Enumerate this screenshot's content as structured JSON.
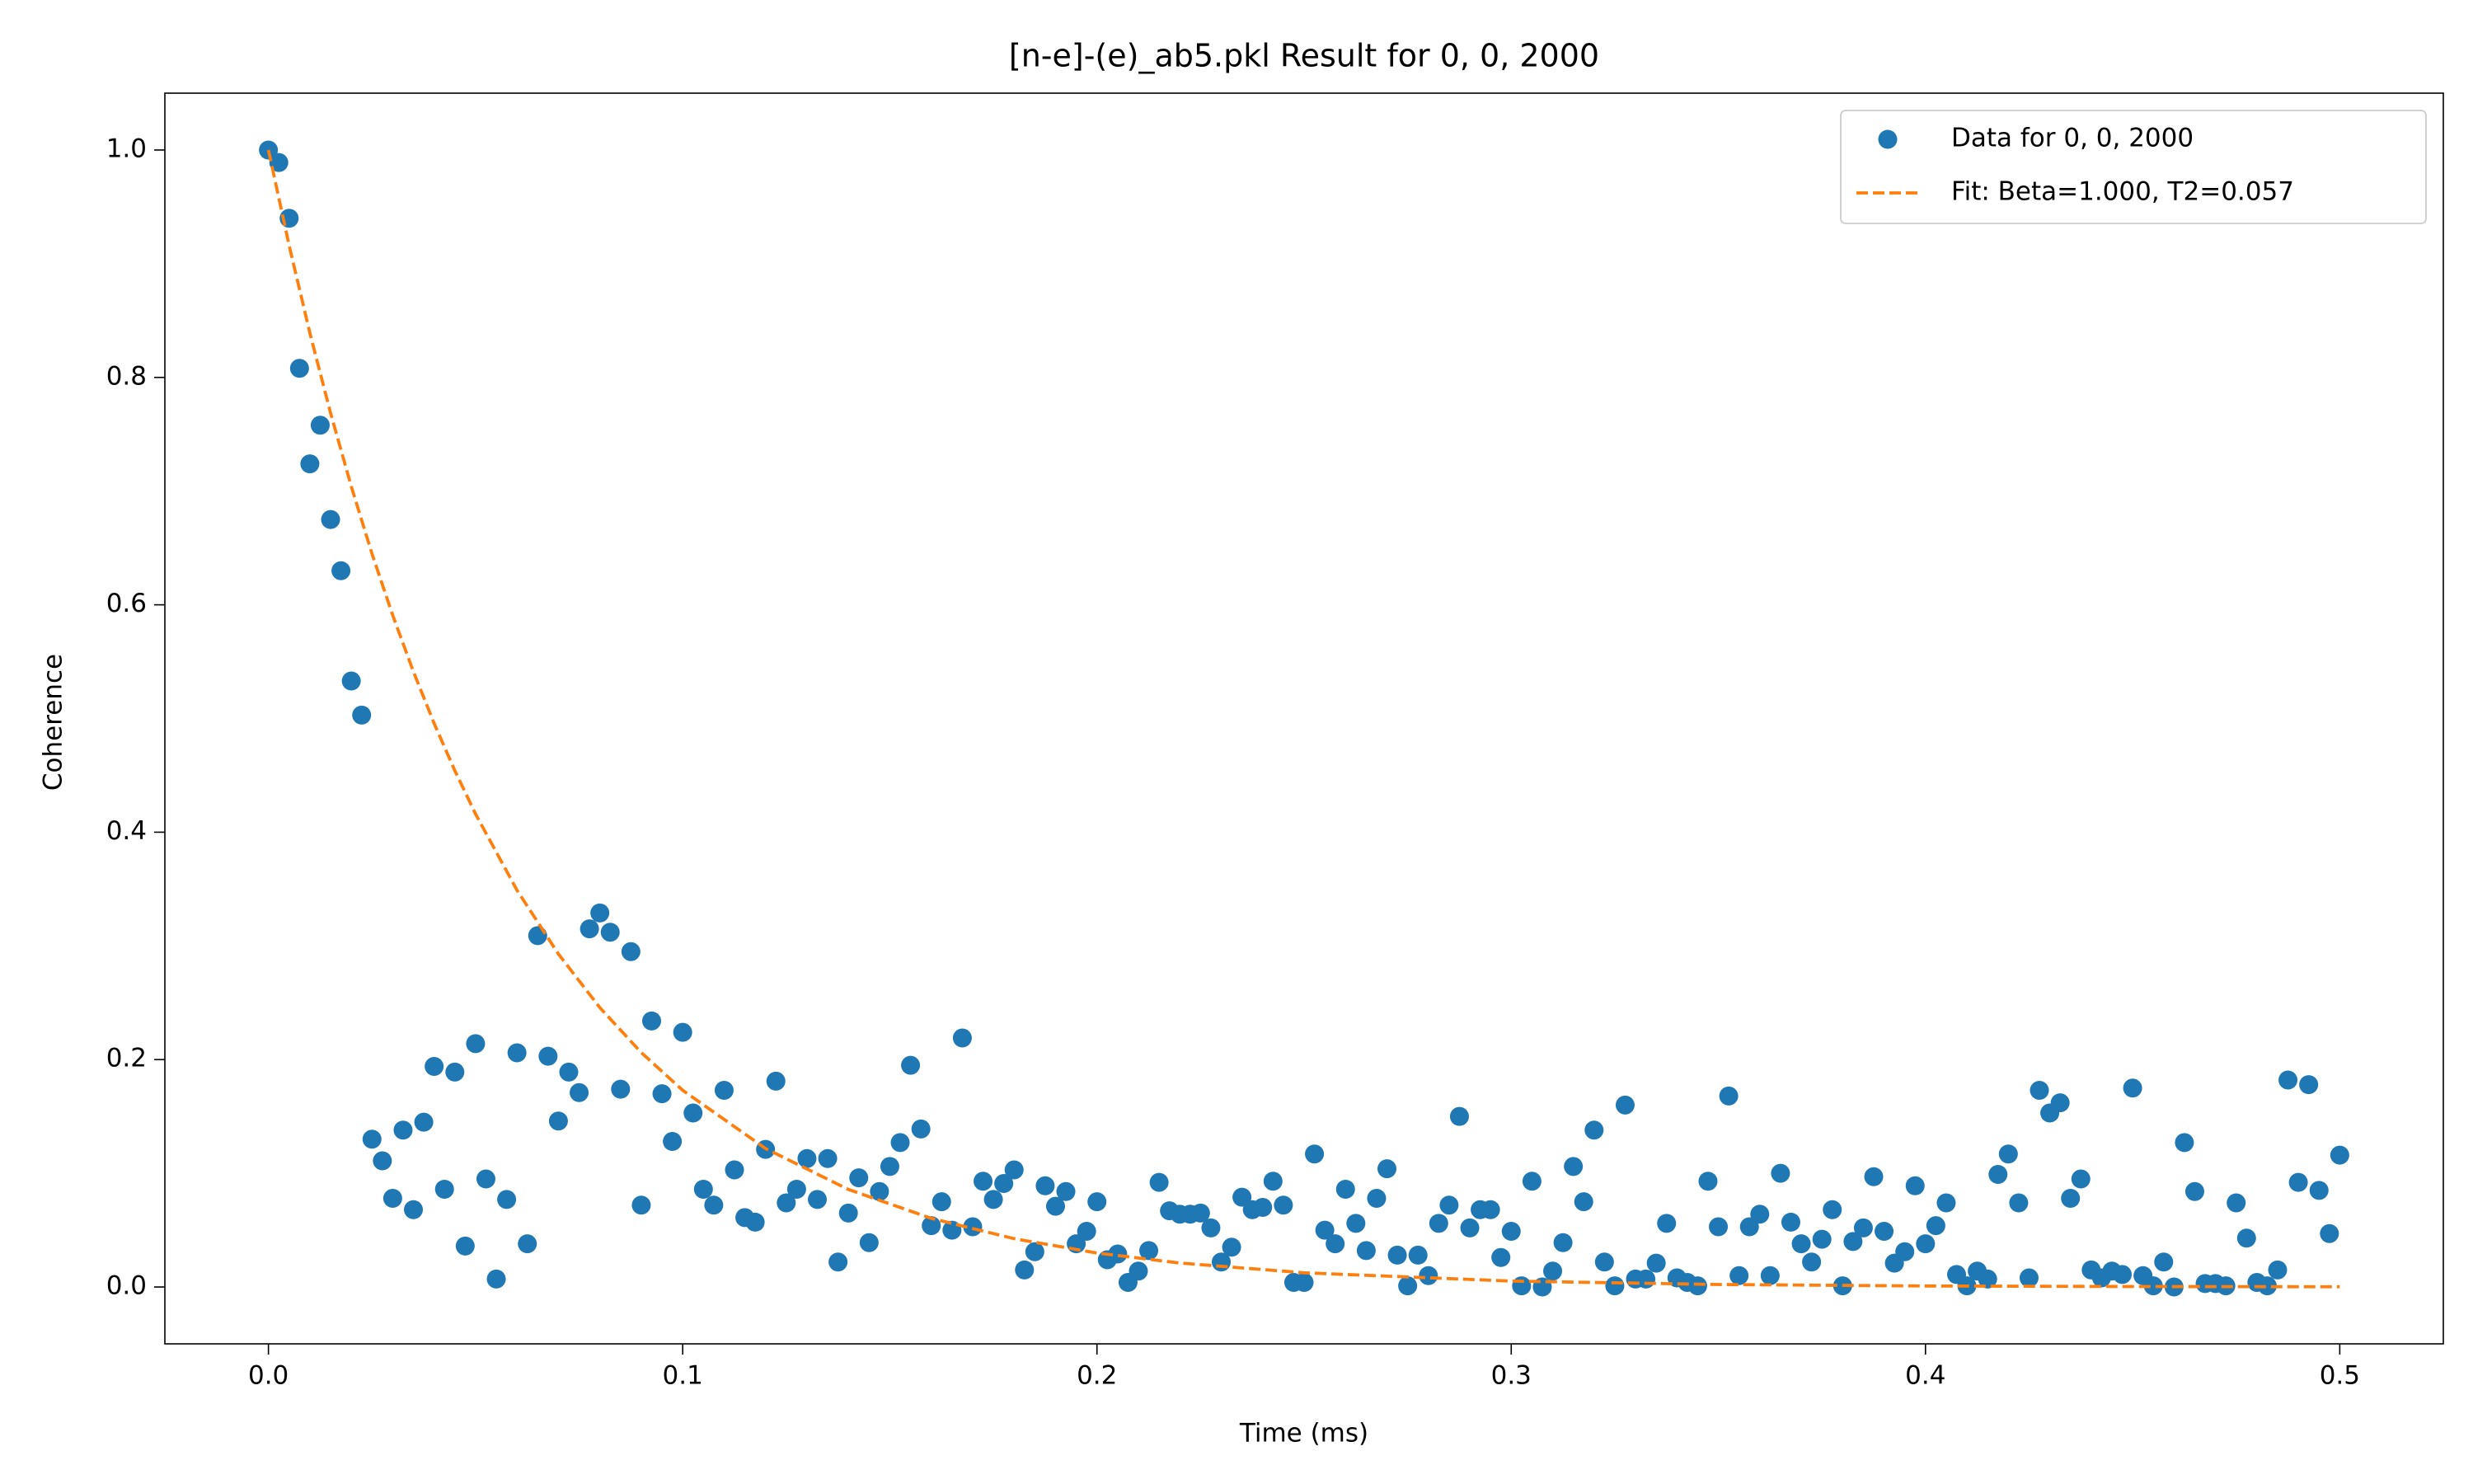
{
  "chart_data": {
    "type": "scatter",
    "title": "[n-e]-(e)_ab5.pkl Result for 0, 0, 2000",
    "xlabel": "Time (ms)",
    "ylabel": "Coherence",
    "xlim": [
      -0.025,
      0.525
    ],
    "ylim": [
      -0.05,
      1.05
    ],
    "xticks": [
      {
        "value": 0,
        "label": "0.0"
      },
      0.1,
      0.2,
      0.3,
      0.4,
      0.5
    ],
    "yticks": [
      {
        "value": 0,
        "label": "0.0"
      },
      0.2,
      0.4,
      0.6,
      0.8,
      {
        "value": 1,
        "label": "1.0"
      }
    ],
    "grid": false,
    "legend": "upper right",
    "series": [
      {
        "name": "Data for 0, 0, 2000",
        "type": "scatter",
        "color": "#1f77b4",
        "x": [
          0,
          0.0025,
          0.005,
          0.0075,
          0.01,
          0.0125,
          0.015,
          0.0175,
          0.02,
          0.0225,
          0.025,
          0.0275,
          0.03,
          0.0325,
          0.035,
          0.0375,
          0.04,
          0.0425,
          0.045,
          0.0475,
          0.05,
          0.0525,
          0.055,
          0.0575,
          0.06,
          0.0625,
          0.065,
          0.0675,
          0.07,
          0.0725,
          0.075,
          0.0775,
          0.08,
          0.0825,
          0.085,
          0.0875,
          0.09,
          0.0925,
          0.095,
          0.0975,
          0.1,
          0.1025,
          0.105,
          0.1075,
          0.11,
          0.1125,
          0.115,
          0.1175,
          0.12,
          0.1225,
          0.125,
          0.1275,
          0.13,
          0.1325,
          0.135,
          0.1375,
          0.14,
          0.1425,
          0.145,
          0.1475,
          0.15,
          0.1525,
          0.155,
          0.1575,
          0.16,
          0.1625,
          0.165,
          0.1675,
          0.17,
          0.1725,
          0.175,
          0.1775,
          0.18,
          0.1825,
          0.185,
          0.1875,
          0.19,
          0.1925,
          0.195,
          0.1975,
          0.2,
          0.2025,
          0.205,
          0.2075,
          0.21,
          0.2125,
          0.215,
          0.2175,
          0.22,
          0.2225,
          0.225,
          0.2275,
          0.23,
          0.2325,
          0.235,
          0.2375,
          0.24,
          0.2425,
          0.245,
          0.2475,
          0.25,
          0.2525,
          0.255,
          0.2575,
          0.26,
          0.2625,
          0.265,
          0.2675,
          0.27,
          0.2725,
          0.275,
          0.2775,
          0.28,
          0.2825,
          0.285,
          0.2875,
          0.29,
          0.2925,
          0.295,
          0.2975,
          0.3,
          0.3025,
          0.305,
          0.3075,
          0.31,
          0.3125,
          0.315,
          0.3175,
          0.32,
          0.3225,
          0.325,
          0.3275,
          0.33,
          0.3325,
          0.335,
          0.3375,
          0.34,
          0.3425,
          0.345,
          0.3475,
          0.35,
          0.3525,
          0.355,
          0.3575,
          0.36,
          0.3625,
          0.365,
          0.3675,
          0.37,
          0.3725,
          0.375,
          0.3775,
          0.38,
          0.3825,
          0.385,
          0.3875,
          0.39,
          0.3925,
          0.395,
          0.3975,
          0.4,
          0.4025,
          0.405,
          0.4075,
          0.41,
          0.4125,
          0.415,
          0.4175,
          0.42,
          0.4225,
          0.425,
          0.4275,
          0.43,
          0.4325,
          0.435,
          0.4375,
          0.44,
          0.4425,
          0.445,
          0.4475,
          0.45,
          0.4525,
          0.455,
          0.4575,
          0.46,
          0.4625,
          0.465,
          0.4675,
          0.47,
          0.4725,
          0.475,
          0.4775,
          0.48,
          0.4825,
          0.485,
          0.4875,
          0.49,
          0.4925,
          0.495,
          0.4975,
          0.5
        ],
        "values": [
          1.0,
          0.989,
          0.94,
          0.808,
          0.724,
          0.758,
          0.675,
          0.63,
          0.533,
          0.503,
          0.13,
          0.111,
          0.078,
          0.138,
          0.068,
          0.145,
          0.194,
          0.086,
          0.189,
          0.036,
          0.214,
          0.095,
          0.007,
          0.077,
          0.206,
          0.038,
          0.309,
          0.203,
          0.146,
          0.189,
          0.171,
          0.315,
          0.329,
          0.312,
          0.174,
          0.295,
          0.072,
          0.234,
          0.17,
          0.128,
          0.224,
          0.153,
          0.086,
          0.072,
          0.173,
          0.103,
          0.061,
          0.057,
          0.121,
          0.181,
          0.074,
          0.086,
          0.113,
          0.077,
          0.113,
          0.022,
          0.065,
          0.096,
          0.039,
          0.084,
          0.106,
          0.127,
          0.195,
          0.139,
          0.054,
          0.075,
          0.05,
          0.219,
          0.053,
          0.093,
          0.077,
          0.091,
          0.103,
          0.015,
          0.031,
          0.089,
          0.071,
          0.084,
          0.038,
          0.049,
          0.075,
          0.024,
          0.029,
          0.004,
          0.014,
          0.032,
          0.092,
          0.067,
          0.064,
          0.064,
          0.065,
          0.052,
          0.022,
          0.035,
          0.079,
          0.068,
          0.07,
          0.093,
          0.072,
          0.004,
          0.004,
          0.117,
          0.05,
          0.038,
          0.086,
          0.056,
          0.032,
          0.078,
          0.104,
          0.028,
          0.001,
          0.028,
          0.01,
          0.056,
          0.072,
          0.15,
          0.052,
          0.068,
          0.068,
          0.026,
          0.049,
          0.001,
          0.093,
          0.0,
          0.014,
          0.039,
          0.106,
          0.075,
          0.138,
          0.022,
          0.001,
          0.16,
          0.007,
          0.007,
          0.021,
          0.056,
          0.008,
          0.004,
          0.001,
          0.093,
          0.053,
          0.168,
          0.01,
          0.053,
          0.064,
          0.01,
          0.1,
          0.057,
          0.038,
          0.022,
          0.042,
          0.068,
          0.001,
          0.04,
          0.052,
          0.097,
          0.049,
          0.021,
          0.031,
          0.089,
          0.038,
          0.054,
          0.074,
          0.011,
          0.001,
          0.014,
          0.007,
          0.099,
          0.117,
          0.074,
          0.008,
          0.173,
          0.153,
          0.162,
          0.078,
          0.095,
          0.015,
          0.008,
          0.014,
          0.011,
          0.175,
          0.01,
          0.001,
          0.022,
          0.0,
          0.127,
          0.084,
          0.003,
          0.003,
          0.001,
          0.074,
          0.043,
          0.004,
          0.001,
          0.015,
          0.182,
          0.092,
          0.178,
          0.085,
          0.047,
          0.116
        ]
      },
      {
        "name": "Fit: Beta=1.000, T2=0.057",
        "type": "line",
        "dashed": true,
        "color": "#ff7f0e",
        "x": [
          0,
          0.005,
          0.01,
          0.015,
          0.02,
          0.025,
          0.03,
          0.035,
          0.04,
          0.045,
          0.05,
          0.06,
          0.07,
          0.08,
          0.09,
          0.1,
          0.12,
          0.14,
          0.16,
          0.18,
          0.2,
          0.22,
          0.25,
          0.3,
          0.35,
          0.4,
          0.45,
          0.5
        ],
        "values": [
          1,
          0.916,
          0.8391,
          0.7686,
          0.7041,
          0.6449,
          0.5908,
          0.5412,
          0.4957,
          0.4541,
          0.416,
          0.349,
          0.2929,
          0.2457,
          0.2062,
          0.173,
          0.1218,
          0.0858,
          0.0604,
          0.0425,
          0.0299,
          0.0211,
          0.0125,
          0.0052,
          0.0022,
          0.0009,
          0.0004,
          0.0002
        ]
      }
    ]
  }
}
